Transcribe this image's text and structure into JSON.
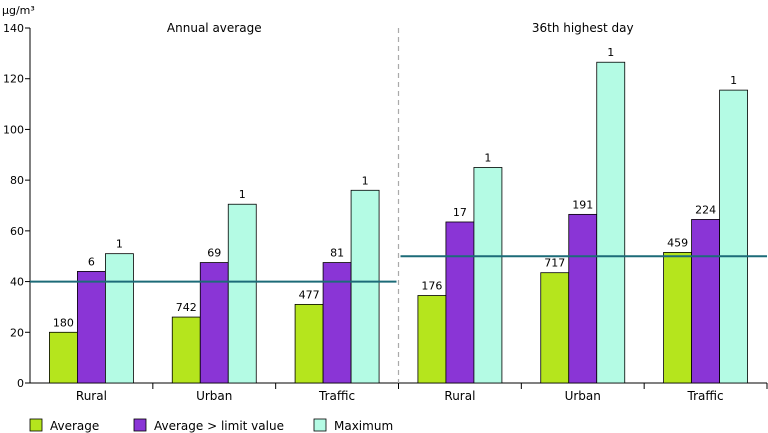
{
  "chart_data": {
    "type": "bar",
    "unit_label": "µg/m³",
    "ylim": [
      0,
      140
    ],
    "yticks": [
      0,
      20,
      40,
      60,
      80,
      100,
      120,
      140
    ],
    "grid": false,
    "legend_position": "bottom-left",
    "colors": {
      "Average": "#b5e51d",
      "Average > limit value": "#8a35d6",
      "Maximum": "#b4fbe4",
      "limit_line": "#1c6b78",
      "divider": "#aaaaaa"
    },
    "groups": [
      {
        "title": "Annual average",
        "limit_value": 40,
        "categories": [
          "Rural",
          "Urban",
          "Traffic"
        ],
        "series": [
          {
            "name": "Average",
            "values": [
              20,
              26,
              31
            ],
            "labels": [
              "180",
              "742",
              "477"
            ]
          },
          {
            "name": "Average > limit value",
            "values": [
              44,
              47.5,
              47.5
            ],
            "labels": [
              "6",
              "69",
              "81"
            ]
          },
          {
            "name": "Maximum",
            "values": [
              51,
              70.5,
              76
            ],
            "labels": [
              "1",
              "1",
              "1"
            ]
          }
        ]
      },
      {
        "title": "36th highest day",
        "limit_value": 50,
        "categories": [
          "Rural",
          "Urban",
          "Traffic"
        ],
        "series": [
          {
            "name": "Average",
            "values": [
              34.5,
              43.5,
              51.5
            ],
            "labels": [
              "176",
              "717",
              "459"
            ]
          },
          {
            "name": "Average > limit value",
            "values": [
              63.5,
              66.5,
              64.5
            ],
            "labels": [
              "17",
              "191",
              "224"
            ]
          },
          {
            "name": "Maximum",
            "values": [
              85,
              126.5,
              115.5
            ],
            "labels": [
              "1",
              "1",
              "1"
            ]
          }
        ]
      }
    ]
  }
}
